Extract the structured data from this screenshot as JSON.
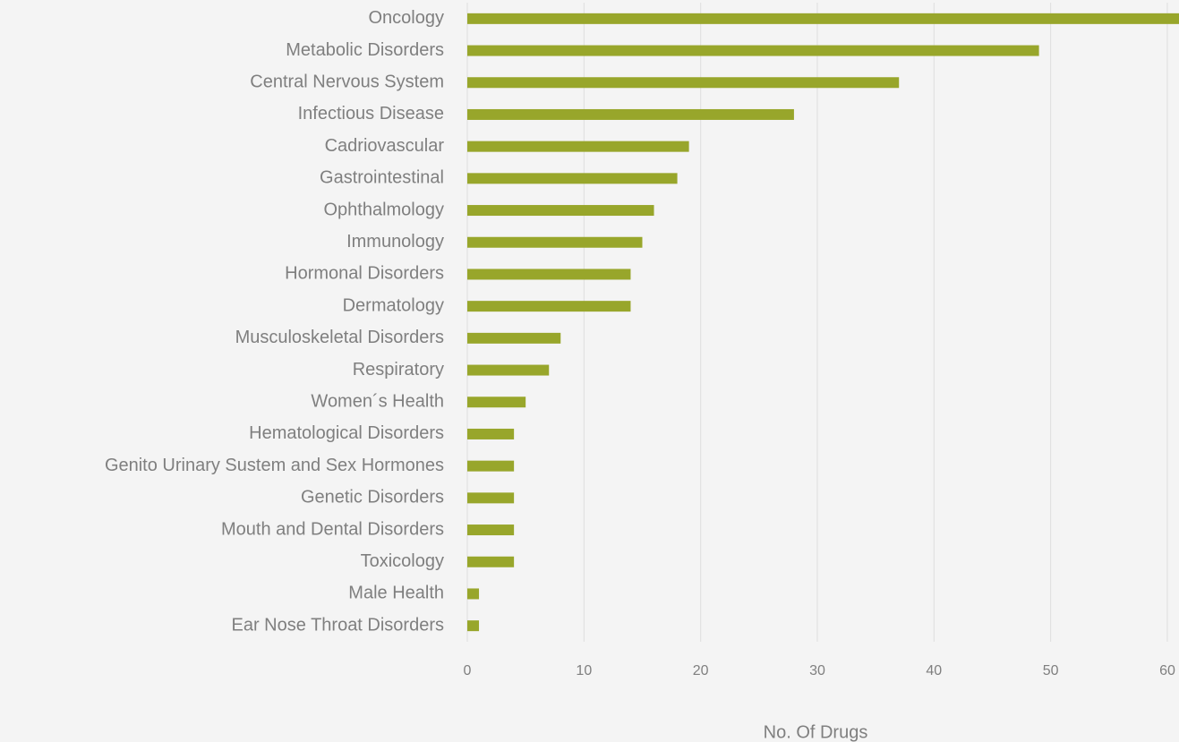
{
  "chart_data": {
    "type": "barh",
    "categories": [
      "Oncology",
      "Metabolic Disorders",
      "Central Nervous System",
      "Infectious Disease",
      "Cadriovascular",
      "Gastrointestinal",
      "Ophthalmology",
      "Immunology",
      "Hormonal Disorders",
      "Dermatology",
      "Musculoskeletal Disorders",
      "Respiratory",
      "Women´s Health",
      "Hematological Disorders",
      "Genito Urinary Sustem and Sex Hormones",
      "Genetic Disorders",
      "Mouth and Dental Disorders",
      "Toxicology",
      "Male Health",
      "Ear Nose Throat Disorders"
    ],
    "values": [
      62,
      49,
      37,
      28,
      19,
      18,
      16,
      15,
      14,
      14,
      8,
      7,
      5,
      4,
      4,
      4,
      4,
      4,
      1,
      1
    ],
    "color": "#98a62b",
    "xlim": [
      0,
      61
    ],
    "xticks": [
      0,
      10,
      20,
      30,
      40,
      50,
      60
    ],
    "grid": true,
    "x_label": "No. Of Drugs"
  }
}
